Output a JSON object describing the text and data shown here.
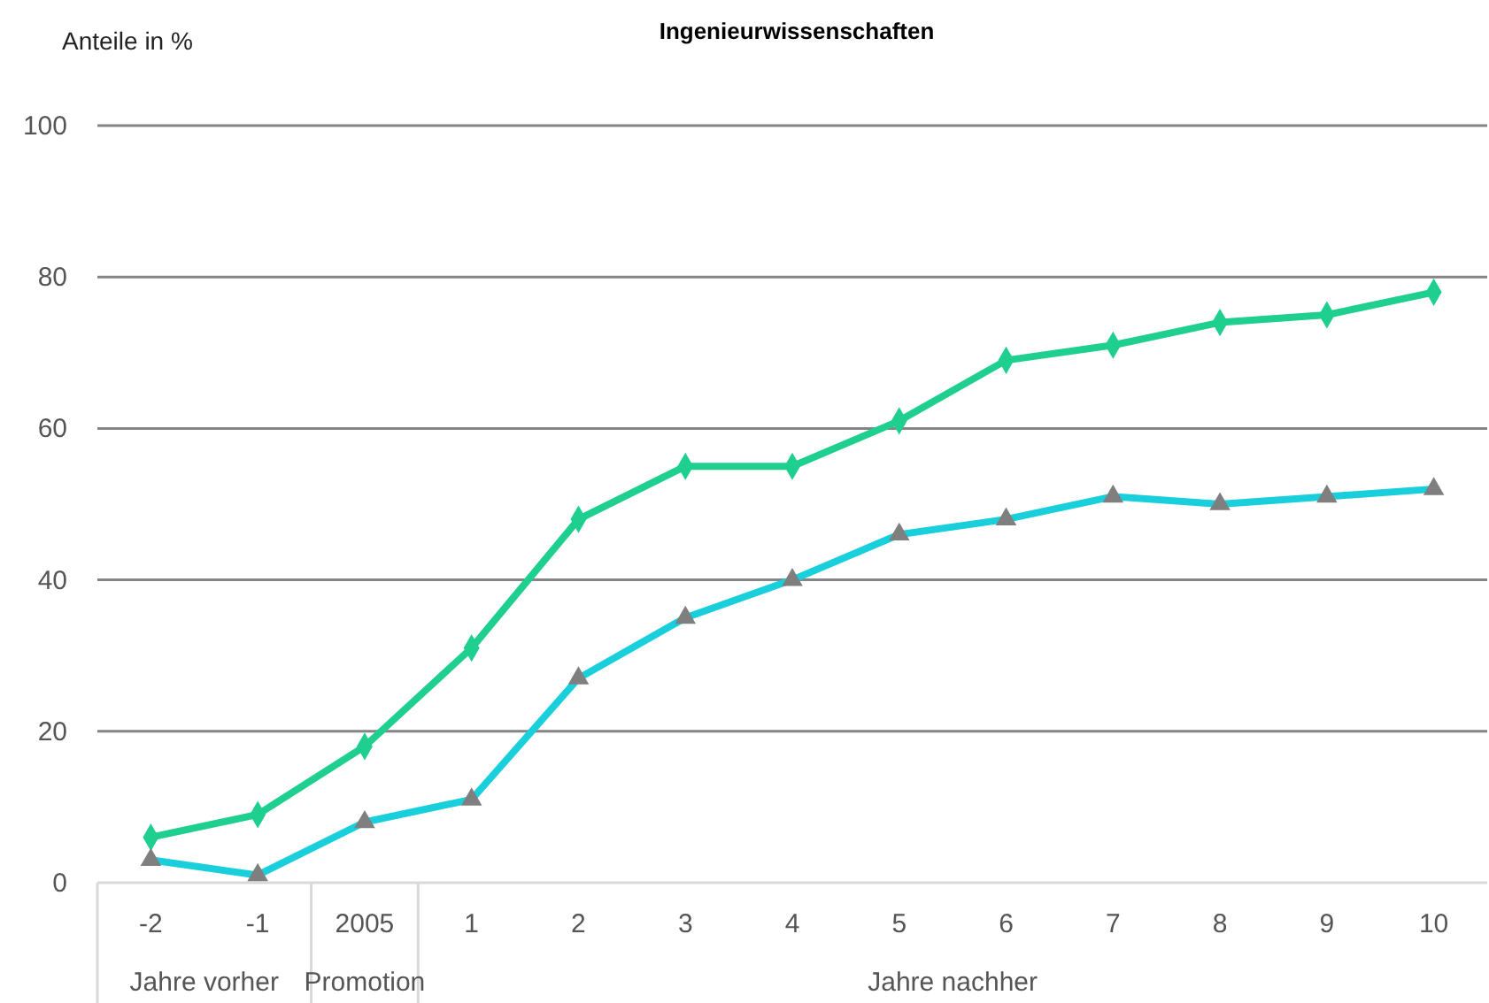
{
  "chart_data": {
    "type": "line",
    "title": "Ingenieurwissenschaften",
    "ylabel": "Anteile in %",
    "categories": [
      "-2",
      "-1",
      "2005",
      "1",
      "2",
      "3",
      "4",
      "5",
      "6",
      "7",
      "8",
      "9",
      "10"
    ],
    "series": [
      {
        "color": "#1ecf8f",
        "marker": "diamond",
        "values": [
          6,
          9,
          18,
          31,
          48,
          55,
          55,
          61,
          69,
          71,
          74,
          75,
          78
        ]
      },
      {
        "color": "#19cfdc",
        "marker": "triangle",
        "values": [
          3,
          1,
          8,
          11,
          27,
          35,
          40,
          46,
          48,
          51,
          50,
          51,
          52
        ]
      }
    ],
    "ylim": [
      0,
      100
    ],
    "yticks": [
      0,
      20,
      40,
      60,
      80,
      100
    ],
    "grid": "y",
    "annotations": [
      "Jahre vorher",
      "Promotion",
      "Jahre nachher"
    ]
  }
}
